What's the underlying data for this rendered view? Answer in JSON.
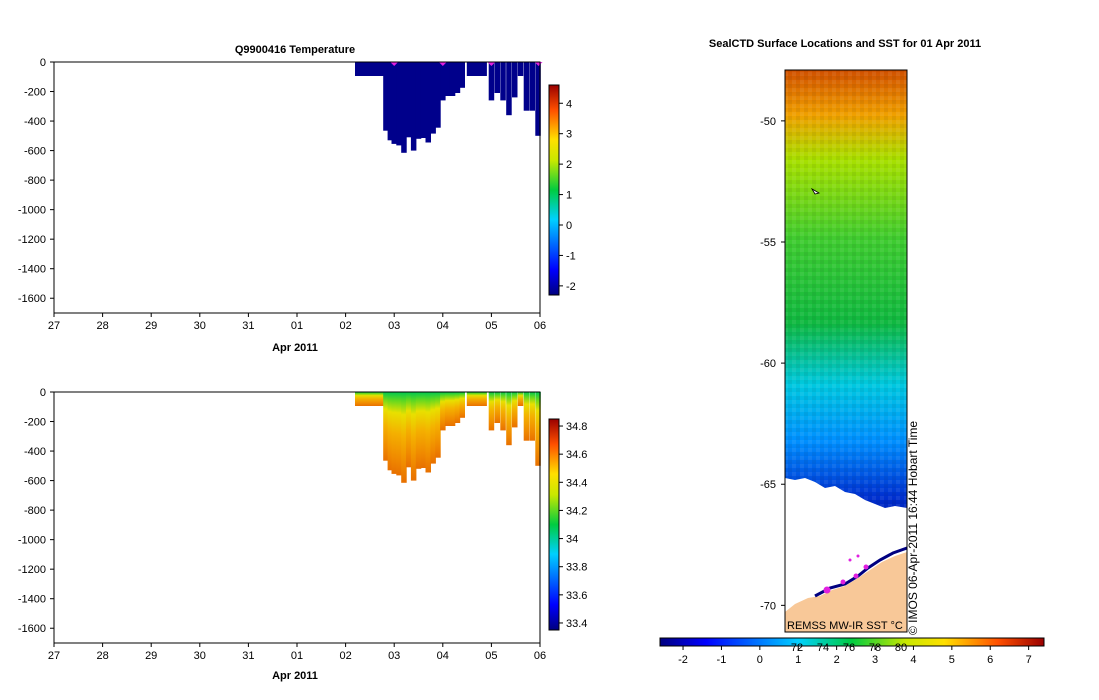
{
  "chart_data": [
    {
      "type": "heatmap",
      "title": "Q9900416  Temperature",
      "xlabel": "Apr 2011",
      "ylabel": "",
      "x_ticks": [
        "27",
        "28",
        "29",
        "30",
        "31",
        "01",
        "02",
        "03",
        "04",
        "05",
        "06"
      ],
      "y_ticks": [
        0,
        -200,
        -400,
        -600,
        -800,
        -1000,
        -1200,
        -1400,
        -1600
      ],
      "ylim": [
        -1700,
        0
      ],
      "colorbar": {
        "min": -2.3,
        "max": 4.6,
        "ticks": [
          4,
          3,
          2,
          1,
          0,
          -1,
          -2
        ]
      },
      "profile_markers_day": [
        7.0,
        8.0,
        9.0,
        9.97
      ],
      "profiles": [
        {
          "day": 6.25,
          "depth": -95
        },
        {
          "day": 6.35,
          "depth": -95
        },
        {
          "day": 6.45,
          "depth": -95
        },
        {
          "day": 6.55,
          "depth": -95
        },
        {
          "day": 6.65,
          "depth": -95
        },
        {
          "day": 6.75,
          "depth": -95
        },
        {
          "day": 6.83,
          "depth": -465
        },
        {
          "day": 6.92,
          "depth": -530
        },
        {
          "day": 7.0,
          "depth": -555
        },
        {
          "day": 7.1,
          "depth": -565
        },
        {
          "day": 7.2,
          "depth": -615
        },
        {
          "day": 7.3,
          "depth": -510
        },
        {
          "day": 7.4,
          "depth": -600
        },
        {
          "day": 7.5,
          "depth": -520
        },
        {
          "day": 7.6,
          "depth": -515
        },
        {
          "day": 7.7,
          "depth": -545
        },
        {
          "day": 7.8,
          "depth": -485
        },
        {
          "day": 7.9,
          "depth": -445
        },
        {
          "day": 8.0,
          "depth": -260
        },
        {
          "day": 8.1,
          "depth": -230
        },
        {
          "day": 8.2,
          "depth": -230
        },
        {
          "day": 8.3,
          "depth": -210
        },
        {
          "day": 8.4,
          "depth": -175
        },
        {
          "day": 8.55,
          "depth": -95
        },
        {
          "day": 8.65,
          "depth": -95
        },
        {
          "day": 8.75,
          "depth": -95
        },
        {
          "day": 8.85,
          "depth": -95
        },
        {
          "day": 9.0,
          "depth": -260
        },
        {
          "day": 9.12,
          "depth": -210
        },
        {
          "day": 9.24,
          "depth": -260
        },
        {
          "day": 9.36,
          "depth": -360
        },
        {
          "day": 9.48,
          "depth": -240
        },
        {
          "day": 9.6,
          "depth": -95
        },
        {
          "day": 9.72,
          "depth": -330
        },
        {
          "day": 9.84,
          "depth": -330
        },
        {
          "day": 9.96,
          "depth": -500
        }
      ]
    },
    {
      "type": "heatmap",
      "title": "",
      "xlabel": "Apr 2011",
      "ylabel": "",
      "x_ticks": [
        "27",
        "28",
        "29",
        "30",
        "31",
        "01",
        "02",
        "03",
        "04",
        "05",
        "06"
      ],
      "y_ticks": [
        0,
        -200,
        -400,
        -600,
        -800,
        -1000,
        -1200,
        -1400,
        -1600
      ],
      "ylim": [
        -1700,
        0
      ],
      "colorbar": {
        "min": 33.35,
        "max": 34.85,
        "ticks": [
          "34.8",
          "34.6",
          "34.4",
          "34.2",
          "34",
          "33.8",
          "33.6",
          "33.4"
        ]
      },
      "profiles": [
        {
          "day": 6.25,
          "depth": -95
        },
        {
          "day": 6.35,
          "depth": -95
        },
        {
          "day": 6.45,
          "depth": -95
        },
        {
          "day": 6.55,
          "depth": -95
        },
        {
          "day": 6.65,
          "depth": -95
        },
        {
          "day": 6.75,
          "depth": -95
        },
        {
          "day": 6.83,
          "depth": -465
        },
        {
          "day": 6.92,
          "depth": -530
        },
        {
          "day": 7.0,
          "depth": -555
        },
        {
          "day": 7.1,
          "depth": -565
        },
        {
          "day": 7.2,
          "depth": -615
        },
        {
          "day": 7.3,
          "depth": -510
        },
        {
          "day": 7.4,
          "depth": -600
        },
        {
          "day": 7.5,
          "depth": -520
        },
        {
          "day": 7.6,
          "depth": -515
        },
        {
          "day": 7.7,
          "depth": -545
        },
        {
          "day": 7.8,
          "depth": -485
        },
        {
          "day": 7.9,
          "depth": -445
        },
        {
          "day": 8.0,
          "depth": -260
        },
        {
          "day": 8.1,
          "depth": -230
        },
        {
          "day": 8.2,
          "depth": -230
        },
        {
          "day": 8.3,
          "depth": -210
        },
        {
          "day": 8.4,
          "depth": -175
        },
        {
          "day": 8.55,
          "depth": -95
        },
        {
          "day": 8.65,
          "depth": -95
        },
        {
          "day": 8.75,
          "depth": -95
        },
        {
          "day": 8.85,
          "depth": -95
        },
        {
          "day": 9.0,
          "depth": -260
        },
        {
          "day": 9.12,
          "depth": -210
        },
        {
          "day": 9.24,
          "depth": -260
        },
        {
          "day": 9.36,
          "depth": -360
        },
        {
          "day": 9.48,
          "depth": -240
        },
        {
          "day": 9.6,
          "depth": -95
        },
        {
          "day": 9.72,
          "depth": -330
        },
        {
          "day": 9.84,
          "depth": -330
        },
        {
          "day": 9.96,
          "depth": -500
        }
      ]
    },
    {
      "type": "heatmap",
      "title": "SealCTD Surface Locations and SST for 01 Apr 2011",
      "xlabel": "",
      "ylabel": "",
      "y_ticks": [
        -50,
        -55,
        -60,
        -65,
        -70
      ],
      "ylim": [
        -71.1,
        -47.9
      ],
      "source_label": "REMSS MW-IR SST °C",
      "side_label": "© IMOS 06-Apr-2011 16:44 Hobart Time",
      "colorbar": {
        "min": -2.6,
        "max": 7.4,
        "ticks": [
          "-2",
          "-1",
          "0",
          "1",
          "2",
          "3",
          "4",
          "5",
          "6",
          "7"
        ],
        "overlap_ticks": [
          "72",
          "74",
          "76",
          "78",
          "80"
        ]
      }
    }
  ]
}
